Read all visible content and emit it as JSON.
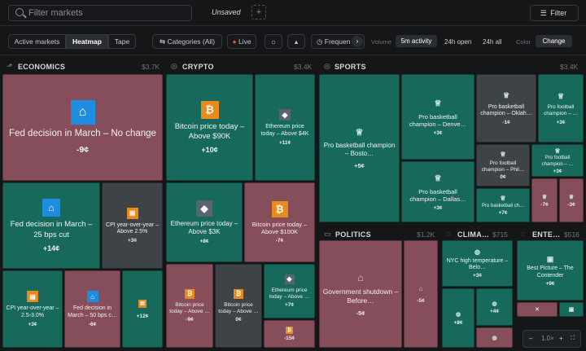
{
  "topbar": {
    "search_placeholder": "Filter markets",
    "tab_label": "Unsaved",
    "add_label": "+",
    "filter_label": "Filter"
  },
  "toolbar": {
    "view_tabs": [
      "Active markets",
      "Heatmap",
      "Tape"
    ],
    "active_view": "Heatmap",
    "categories_label": "Categories (All)",
    "live_label": "Live",
    "frequency_label": "Frequen",
    "volume_label": "Volume",
    "volume_tabs": [
      "5m activity",
      "24h open",
      "24h all"
    ],
    "active_volume": "5m activity",
    "color_label": "Color",
    "color_value": "Change"
  },
  "sections": {
    "economics": {
      "name": "ECONOMICS",
      "value": "$3.7K"
    },
    "crypto": {
      "name": "CRYPTO",
      "value": "$3.4K"
    },
    "sports": {
      "name": "SPORTS",
      "value": "$3.4K"
    },
    "politics": {
      "name": "POLITICS",
      "value": "$1.2K"
    },
    "climate": {
      "name": "CLIMA…",
      "value": "$715"
    },
    "entertainment": {
      "name": "ENTE…",
      "value": "$516"
    }
  },
  "tiles": {
    "econ1": {
      "title": "Fed decision in March – No change",
      "value": "-9¢",
      "icon": "bank-icon"
    },
    "econ2": {
      "title": "Fed decision in March – 25 bps cut",
      "value": "+14¢",
      "icon": "bank-icon"
    },
    "econ3": {
      "title": "CPI year-over-year – Above 2.5%",
      "value": "+3¢",
      "icon": "cpi-icon"
    },
    "econ4": {
      "title": "CPI year-over-year – 2.5-3.0%",
      "value": "+3¢",
      "icon": "cpi-icon"
    },
    "econ5": {
      "title": "Fed decision in March – 50 bps c…",
      "value": "-6¢",
      "icon": "bank-icon"
    },
    "econ6": {
      "title": "",
      "value": "+12¢",
      "icon": "cpi-icon"
    },
    "cry1": {
      "title": "Bitcoin price today – Above $90K",
      "value": "+10¢",
      "icon": "bitcoin-icon"
    },
    "cry2": {
      "title": "Ethereum price today – Above $4K",
      "value": "+11¢",
      "icon": "ethereum-icon"
    },
    "cry3": {
      "title": "Ethereum price today – Above $3K",
      "value": "+8¢",
      "icon": "ethereum-icon"
    },
    "cry4": {
      "title": "Bitcoin price today – Above $100K",
      "value": "-7¢",
      "icon": "bitcoin-icon"
    },
    "cry5": {
      "title": "Bitcoin price today – Above …",
      "value": "-9¢",
      "icon": "bitcoin-icon"
    },
    "cry6": {
      "title": "Bitcoin price today – Above …",
      "value": "0¢",
      "icon": "bitcoin-icon"
    },
    "cry7": {
      "title": "Ethereum price today – Above …",
      "value": "+7¢",
      "icon": "ethereum-icon"
    },
    "cry8": {
      "title": "",
      "value": "-15¢",
      "icon": "bitcoin-icon"
    },
    "sp1": {
      "title": "Pro basketball champion – Bosto…",
      "value": "+5¢",
      "icon": "trophy-icon"
    },
    "sp2": {
      "title": "Pro basketball champion – Denve…",
      "value": "+3¢",
      "icon": "trophy-icon"
    },
    "sp3": {
      "title": "Pro basketball champion – Dallas…",
      "value": "+3¢",
      "icon": "trophy-icon"
    },
    "sp4": {
      "title": "Pro basketball champion – Oklah…",
      "value": "-1¢",
      "icon": "trophy-icon"
    },
    "sp5": {
      "title": "Pro football champion – …",
      "value": "+3¢",
      "icon": "trophy-icon"
    },
    "sp6": {
      "title": "Pro football champion – Phil…",
      "value": "0¢",
      "icon": "trophy-icon"
    },
    "sp7": {
      "title": "Pro football champion – …",
      "value": "+3¢",
      "icon": "trophy-icon"
    },
    "sp8": {
      "title": "Pro basketball ch…",
      "value": "+7¢",
      "icon": "trophy-icon"
    },
    "sp9": {
      "title": "",
      "value": "-7¢",
      "icon": "trophy-icon"
    },
    "sp10": {
      "title": "",
      "value": "-3¢",
      "icon": "trophy-icon"
    },
    "pol1": {
      "title": "Government shutdown – Before…",
      "value": "-5¢",
      "icon": "vote-icon"
    },
    "pol2": {
      "title": "",
      "value": "-5¢",
      "icon": "vote-icon"
    },
    "cl1": {
      "title": "NYC high temperature – Belo…",
      "value": "+3¢",
      "icon": "thermometer-icon"
    },
    "cl2": {
      "title": "",
      "value": "+8¢",
      "icon": "thermometer-icon"
    },
    "cl3": {
      "title": "",
      "value": "+4¢",
      "icon": "thermometer-icon"
    },
    "cl4": {
      "title": "",
      "value": "",
      "icon": "thermometer-icon"
    },
    "cl5": {
      "title": "",
      "value": "",
      "icon": "thermometer-icon"
    },
    "ent1": {
      "title": "Best Picture – The Contender",
      "value": "+9¢",
      "icon": "film-icon"
    },
    "ent2": {
      "title": "",
      "value": "",
      "icon": "film-icon"
    },
    "ent3": {
      "title": "",
      "value": "",
      "icon": "film-icon"
    }
  },
  "zoom": {
    "minus": "–",
    "level": "1.0×",
    "plus": "+"
  },
  "colors": {
    "positive": "#176a5b",
    "negative": "#864d5b",
    "neutral": "#3e4348",
    "accent": "#1e8ce0"
  }
}
